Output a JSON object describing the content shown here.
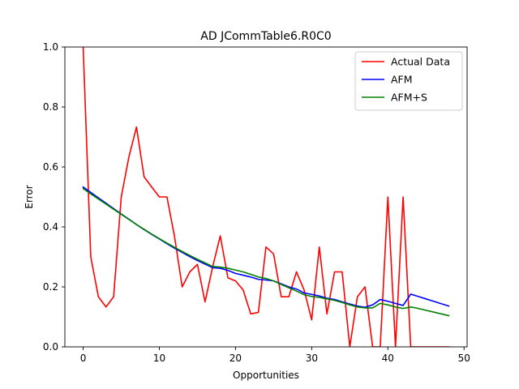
{
  "chart_data": {
    "type": "line",
    "title": "AD JCommTable6.R0C0",
    "xlabel": "Opportunities",
    "ylabel": "Error",
    "xlim": [
      -2.4,
      50.4
    ],
    "ylim": [
      0,
      1.0
    ],
    "xticks": [
      0,
      10,
      20,
      30,
      40,
      50
    ],
    "yticks": [
      0.0,
      0.2,
      0.4,
      0.6,
      0.8,
      1.0
    ],
    "xtick_labels": [
      "0",
      "10",
      "20",
      "30",
      "40",
      "50"
    ],
    "ytick_labels": [
      "0.0",
      "0.2",
      "0.4",
      "0.6",
      "0.8",
      "1.0"
    ],
    "grid": false,
    "legend_position": "top-right",
    "series": [
      {
        "name": "Actual Data",
        "color": "#ff0000",
        "x": [
          0,
          1,
          2,
          3,
          4,
          5,
          6,
          7,
          8,
          9,
          10,
          11,
          12,
          13,
          14,
          15,
          16,
          17,
          18,
          19,
          20,
          21,
          22,
          23,
          24,
          25,
          26,
          27,
          28,
          29,
          30,
          31,
          32,
          33,
          34,
          35,
          36,
          37,
          38,
          39,
          40,
          41,
          42,
          43,
          44,
          45,
          46,
          47,
          48
        ],
        "y": [
          1.0,
          0.3,
          0.167,
          0.133,
          0.167,
          0.5,
          0.633,
          0.733,
          0.567,
          0.533,
          0.5,
          0.5,
          0.367,
          0.2,
          0.25,
          0.275,
          0.15,
          0.267,
          0.37,
          0.23,
          0.22,
          0.19,
          0.11,
          0.115,
          0.333,
          0.31,
          0.167,
          0.167,
          0.25,
          0.19,
          0.09,
          0.333,
          0.11,
          0.25,
          0.25,
          0.0,
          0.167,
          0.2,
          0.0,
          0.0,
          0.5,
          0.0,
          0.5,
          0.0,
          0.0,
          0.0,
          0.0,
          0.0,
          0.0
        ]
      },
      {
        "name": "AFM",
        "color": "#0000ff",
        "x": [
          0,
          1,
          2,
          3,
          4,
          5,
          6,
          7,
          8,
          9,
          10,
          11,
          12,
          13,
          14,
          15,
          16,
          17,
          18,
          19,
          20,
          21,
          22,
          23,
          24,
          25,
          26,
          27,
          28,
          29,
          30,
          31,
          32,
          33,
          34,
          35,
          36,
          37,
          38,
          39,
          40,
          41,
          42,
          43,
          44,
          45,
          46,
          47,
          48
        ],
        "y": [
          0.533,
          0.515,
          0.497,
          0.479,
          0.461,
          0.443,
          0.426,
          0.408,
          0.391,
          0.375,
          0.36,
          0.344,
          0.329,
          0.315,
          0.301,
          0.288,
          0.276,
          0.264,
          0.262,
          0.255,
          0.245,
          0.239,
          0.233,
          0.225,
          0.223,
          0.22,
          0.21,
          0.2,
          0.193,
          0.18,
          0.175,
          0.17,
          0.162,
          0.158,
          0.15,
          0.143,
          0.136,
          0.132,
          0.14,
          0.158,
          0.152,
          0.145,
          0.138,
          0.176,
          0.168,
          0.16,
          0.152,
          0.144,
          0.136
        ]
      },
      {
        "name": "AFM+S",
        "color": "#008000",
        "x": [
          0,
          1,
          2,
          3,
          4,
          5,
          6,
          7,
          8,
          9,
          10,
          11,
          12,
          13,
          14,
          15,
          16,
          17,
          18,
          19,
          20,
          21,
          22,
          23,
          24,
          25,
          26,
          27,
          28,
          29,
          30,
          31,
          32,
          33,
          34,
          35,
          36,
          37,
          38,
          39,
          40,
          41,
          42,
          43,
          44,
          45,
          46,
          47,
          48
        ],
        "y": [
          0.528,
          0.51,
          0.493,
          0.476,
          0.459,
          0.442,
          0.425,
          0.408,
          0.392,
          0.376,
          0.361,
          0.346,
          0.332,
          0.318,
          0.305,
          0.292,
          0.28,
          0.268,
          0.266,
          0.262,
          0.256,
          0.25,
          0.242,
          0.233,
          0.228,
          0.22,
          0.208,
          0.197,
          0.186,
          0.174,
          0.168,
          0.165,
          0.16,
          0.155,
          0.148,
          0.14,
          0.133,
          0.13,
          0.13,
          0.145,
          0.14,
          0.133,
          0.128,
          0.133,
          0.128,
          0.122,
          0.116,
          0.11,
          0.104
        ]
      }
    ]
  }
}
